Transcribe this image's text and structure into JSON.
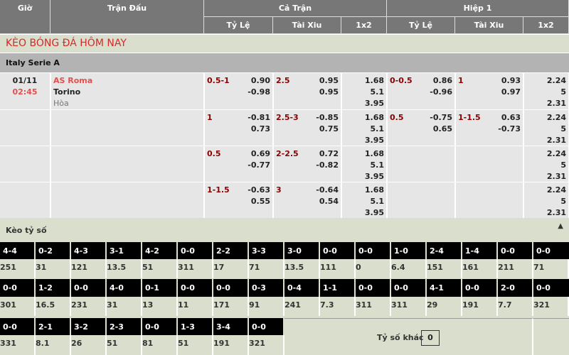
{
  "header": {
    "time": "Giờ",
    "match": "Trận Đấu",
    "full": "Cả Trận",
    "half": "Hiệp 1",
    "cols": [
      "Tỷ Lệ",
      "Tài Xiu",
      "1x2",
      "Tỷ Lệ",
      "Tài Xiu",
      "1x2"
    ]
  },
  "title": "KÈO BÓNG ĐÁ HÔM NAY",
  "league": "Italy Serie A",
  "match": {
    "date": "01/11",
    "time": "02:45",
    "home": "AS Roma",
    "away": "Torino",
    "draw": "Hòa"
  },
  "rows": [
    {
      "hdp": "0.5-1",
      "hdp_o": [
        "0.90",
        "-0.98"
      ],
      "ou": "2.5",
      "ou_o": [
        "0.95",
        "0.95"
      ],
      "x12": [
        "1.68",
        "5.1",
        "3.95"
      ],
      "h_hdp": "0-0.5",
      "h_hdp_o": [
        "0.86",
        "-0.96"
      ],
      "h_ou": "1",
      "h_ou_o": [
        "0.93",
        "0.97"
      ],
      "h_x12": [
        "2.24",
        "5",
        "2.31"
      ]
    },
    {
      "hdp": "1",
      "hdp_o": [
        "-0.81",
        "0.73"
      ],
      "ou": "2.5-3",
      "ou_o": [
        "-0.85",
        "0.75"
      ],
      "x12": [
        "1.68",
        "5.1",
        "3.95"
      ],
      "h_hdp": "0.5",
      "h_hdp_o": [
        "-0.75",
        "0.65"
      ],
      "h_ou": "1-1.5",
      "h_ou_o": [
        "0.63",
        "-0.73"
      ],
      "h_x12": [
        "2.24",
        "5",
        "2.31"
      ]
    },
    {
      "hdp": "0.5",
      "hdp_o": [
        "0.69",
        "-0.77"
      ],
      "ou": "2-2.5",
      "ou_o": [
        "0.72",
        "-0.82"
      ],
      "x12": [
        "1.68",
        "5.1",
        "3.95"
      ],
      "h_hdp": "",
      "h_hdp_o": [
        "",
        ""
      ],
      "h_ou": "",
      "h_ou_o": [
        "",
        ""
      ],
      "h_x12": [
        "2.24",
        "5",
        "2.31"
      ]
    },
    {
      "hdp": "1-1.5",
      "hdp_o": [
        "-0.63",
        "0.55"
      ],
      "ou": "3",
      "ou_o": [
        "-0.64",
        "0.54"
      ],
      "x12": [
        "1.68",
        "5.1",
        "3.95"
      ],
      "h_hdp": "",
      "h_hdp_o": [
        "",
        ""
      ],
      "h_ou": "",
      "h_ou_o": [
        "",
        ""
      ],
      "h_x12": [
        "2.24",
        "5",
        "2.31"
      ]
    }
  ],
  "correct_score": {
    "label": "Kèo tỷ số",
    "collapse_icon": "caret-up-icon",
    "rows": [
      [
        [
          "4-4",
          "251"
        ],
        [
          "0-2",
          "31"
        ],
        [
          "4-3",
          "121"
        ],
        [
          "3-1",
          "13.5"
        ],
        [
          "4-2",
          "51"
        ],
        [
          "0-0",
          "311"
        ],
        [
          "2-2",
          "17"
        ],
        [
          "3-3",
          "71"
        ],
        [
          "3-0",
          "13.5"
        ],
        [
          "0-0",
          "111"
        ],
        [
          "0-0",
          "0"
        ],
        [
          "1-0",
          "6.4"
        ],
        [
          "2-4",
          "151"
        ],
        [
          "1-4",
          "161"
        ],
        [
          "0-0",
          "211"
        ],
        [
          "0-0",
          "71"
        ]
      ],
      [
        [
          "0-0",
          "301"
        ],
        [
          "1-2",
          "16.5"
        ],
        [
          "0-0",
          "231"
        ],
        [
          "4-0",
          "31"
        ],
        [
          "0-1",
          "13"
        ],
        [
          "0-0",
          "11"
        ],
        [
          "0-0",
          "171"
        ],
        [
          "0-3",
          "91"
        ],
        [
          "0-4",
          "241"
        ],
        [
          "1-1",
          "7.3"
        ],
        [
          "0-0",
          "311"
        ],
        [
          "0-0",
          "311"
        ],
        [
          "4-1",
          "29"
        ],
        [
          "0-0",
          "191"
        ],
        [
          "2-0",
          "7.7"
        ],
        [
          "0-0",
          "321"
        ]
      ],
      [
        [
          "0-0",
          "331"
        ],
        [
          "2-1",
          "8.1"
        ],
        [
          "3-2",
          "26"
        ],
        [
          "2-3",
          "51"
        ],
        [
          "0-0",
          "81"
        ],
        [
          "1-3",
          "51"
        ],
        [
          "3-4",
          "191"
        ],
        [
          "0-0",
          "321"
        ]
      ]
    ],
    "other_label": "Tỷ số khác",
    "other_value": "0"
  },
  "colors": {
    "header": "#777777",
    "accent_red": "#d42a2a",
    "odds_red": "#8b0000",
    "band": "#d9dfcc"
  }
}
